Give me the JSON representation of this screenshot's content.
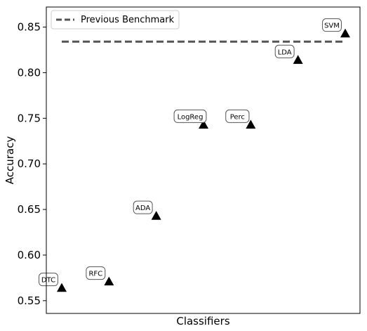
{
  "chart_data": {
    "type": "scatter",
    "xlabel": "Classifiers",
    "ylabel": "Accuracy",
    "categories": [
      "DTC",
      "RFC",
      "ADA",
      "LogReg",
      "Perc",
      "LDA",
      "SVM"
    ],
    "values": [
      0.564,
      0.571,
      0.643,
      0.743,
      0.743,
      0.814,
      0.843
    ],
    "marker": "triangle",
    "marker_color": "#000000",
    "benchmark": {
      "name": "Previous Benchmark",
      "value": 0.834,
      "color": "#555555",
      "style": "dashed"
    },
    "yticks": [
      0.55,
      0.6,
      0.65,
      0.7,
      0.75,
      0.8,
      0.85
    ],
    "ytick_labels": [
      "0.55",
      "0.60",
      "0.65",
      "0.70",
      "0.75",
      "0.80",
      "0.85"
    ],
    "ylim": [
      0.536,
      0.872
    ],
    "xticks_visible": false,
    "grid": false,
    "legend_position": "top-left"
  }
}
